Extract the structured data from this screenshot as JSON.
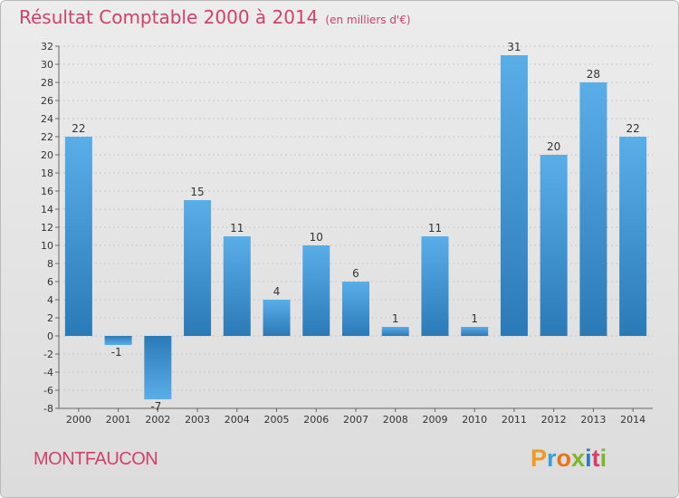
{
  "title": "Résultat Comptable 2000 à 2014",
  "subtitle": "(en milliers d'€)",
  "commune": "MONTFAUCON",
  "brand": "Proxiti",
  "colors": {
    "bar": "#3e95d6",
    "bar_dark": "#2b7dbd",
    "title": "#d1416c",
    "grid": "#c8c8c8"
  },
  "chart_data": {
    "type": "bar",
    "title": "Résultat Comptable 2000 à 2014",
    "unit": "(en milliers d'€)",
    "xlabel": "",
    "ylabel": "",
    "ylim": [
      -8,
      32
    ],
    "yticks": [
      -8,
      -6,
      -4,
      -2,
      0,
      2,
      4,
      6,
      8,
      10,
      12,
      14,
      16,
      18,
      20,
      22,
      24,
      26,
      28,
      30,
      32
    ],
    "grid": true,
    "categories": [
      "2000",
      "2001",
      "2002",
      "2003",
      "2004",
      "2005",
      "2006",
      "2007",
      "2008",
      "2009",
      "2010",
      "2011",
      "2012",
      "2013",
      "2014"
    ],
    "values": [
      22,
      -1,
      -7,
      15,
      11,
      4,
      10,
      6,
      1,
      11,
      1,
      31,
      20,
      28,
      22
    ]
  }
}
